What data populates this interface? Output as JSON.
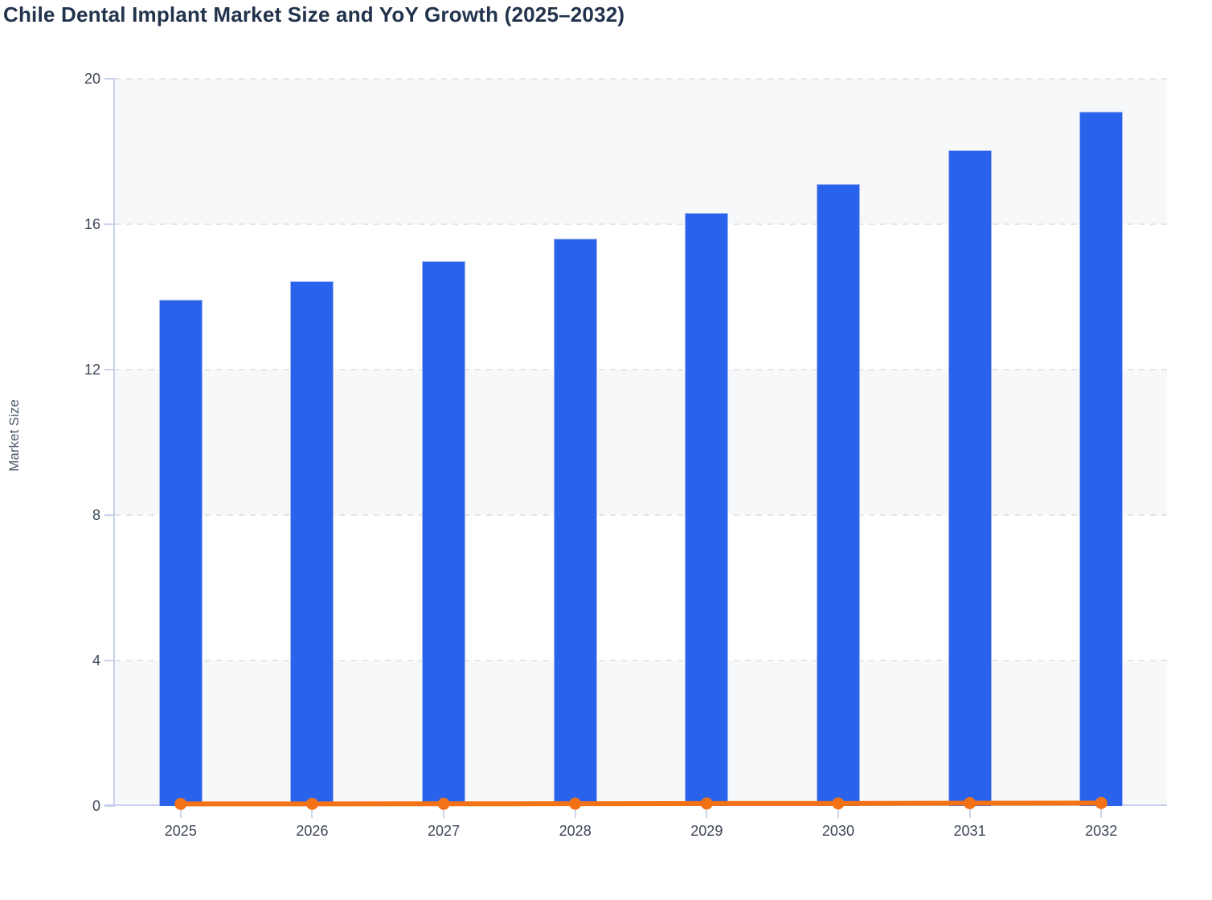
{
  "chart": {
    "title": "Chile Dental Implant Market Size and YoY Growth (2025–2032)",
    "y_axis_title": "Market Size"
  },
  "chart_data": {
    "type": "combo",
    "title": "Chile Dental Implant Market Size and YoY Growth (2025–2032)",
    "xlabel": "",
    "ylabel": "Market Size",
    "categories": [
      "2025",
      "2026",
      "2027",
      "2028",
      "2029",
      "2030",
      "2031",
      "2032"
    ],
    "series": [
      {
        "name": "Market Size",
        "type": "bar",
        "color": "#2a63eb",
        "values": [
          13.92,
          14.43,
          14.98,
          15.6,
          16.31,
          17.1,
          18.04,
          19.1
        ]
      },
      {
        "name": "YoY Growth",
        "type": "line",
        "color": "#f47216",
        "values": [
          0.035,
          0.037,
          0.038,
          0.041,
          0.046,
          0.048,
          0.055,
          0.059
        ]
      }
    ],
    "ylim": [
      0,
      20
    ],
    "y_ticks": [
      0,
      4,
      8,
      12,
      16,
      20
    ],
    "grid": "horizontal-dashed",
    "band_ranges": [
      [
        16,
        20
      ],
      [
        8,
        12
      ],
      [
        0,
        4
      ]
    ],
    "legend_position": "none"
  },
  "colors": {
    "bar_fill": "#2a63eb",
    "bar_border": "#b7c5f6",
    "line": "#f47216",
    "axis": "#c9d0ec",
    "gridline": "#e3e5e9",
    "band": "#f6f8fa",
    "title_text": "#22334c",
    "tick_text": "#3d4757",
    "axis_title_text": "#4d5a6b"
  }
}
